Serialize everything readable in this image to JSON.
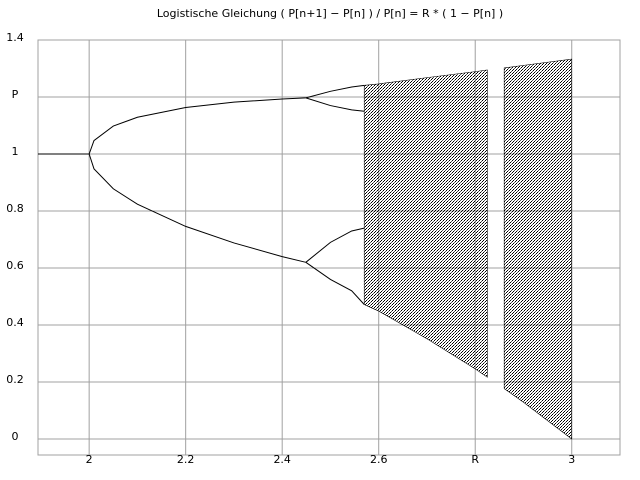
{
  "chart_data": {
    "type": "line",
    "title": "Logistische Gleichung  ( P[n+1] − P[n] ) / P[n] = R * ( 1 − P[n] )",
    "color": "#000000",
    "grid": true,
    "xlim": [
      1.894,
      3.1
    ],
    "ylim": [
      -0.056,
      1.4
    ],
    "xticks": [
      2,
      2.2,
      2.4,
      2.6,
      {
        "value": 2.8,
        "label": "R"
      },
      3
    ],
    "yticks": [
      0,
      0.2,
      0.4,
      0.6,
      0.8,
      1,
      {
        "value": 1.2,
        "label": "P"
      },
      1.4
    ],
    "series": [
      {
        "x": [
          1.894,
          2.0
        ],
        "values": [
          1,
          1
        ]
      },
      {
        "x": [
          2.0,
          2.01,
          2.05,
          2.1,
          2.2,
          2.3,
          2.4,
          2.449
        ],
        "values": [
          1,
          1.047,
          1.098,
          1.129,
          1.163,
          1.182,
          1.193,
          1.197
        ]
      },
      {
        "x": [
          2.0,
          2.01,
          2.05,
          2.1,
          2.2,
          2.3,
          2.4,
          2.449
        ],
        "values": [
          1,
          0.948,
          0.878,
          0.824,
          0.746,
          0.688,
          0.64,
          0.62
        ]
      },
      {
        "x": [
          2.449,
          2.5,
          2.544,
          2.57
        ],
        "values": [
          1.197,
          1.22,
          1.235,
          1.241
        ]
      },
      {
        "x": [
          2.449,
          2.5,
          2.544,
          2.57
        ],
        "values": [
          1.197,
          1.17,
          1.155,
          1.15
        ]
      },
      {
        "x": [
          2.449,
          2.5,
          2.544,
          2.57
        ],
        "values": [
          0.62,
          0.69,
          0.73,
          0.74
        ]
      },
      {
        "x": [
          2.449,
          2.5,
          2.544,
          2.57
        ],
        "values": [
          0.62,
          0.56,
          0.52,
          0.472
        ]
      },
      {
        "x": [
          2.57,
          2.6,
          2.7,
          2.8,
          2.825,
          2.835,
          2.86,
          2.9,
          3.0
        ],
        "upper": [
          1.241,
          1.246,
          1.268,
          1.289,
          1.295,
          null,
          1.302,
          1.311,
          1.333
        ],
        "lower": [
          0.472,
          0.449,
          0.352,
          0.246,
          0.217,
          null,
          0.177,
          0.129,
          0
        ]
      }
    ]
  }
}
